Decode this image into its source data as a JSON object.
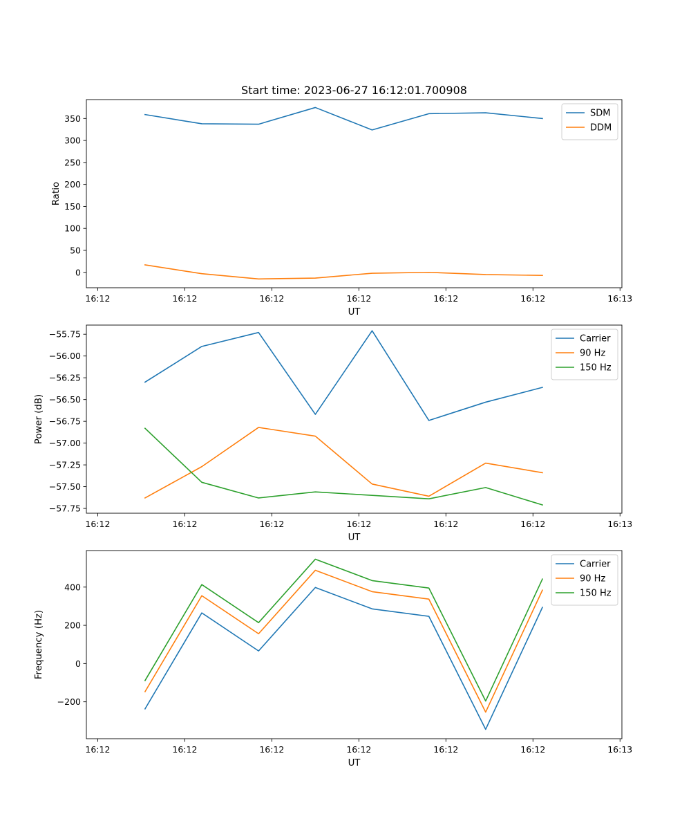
{
  "chart_data": [
    {
      "type": "line",
      "title": "Start time: 2023-06-27 16:12:01.700908",
      "xlabel": "UT",
      "ylabel": "Ratio",
      "x": [
        0.9,
        1.2,
        1.5,
        1.8,
        2.1,
        2.4,
        2.7,
        3.0
      ],
      "xlim": [
        0.59,
        3.42
      ],
      "x_ticks": [
        0.65,
        1.11,
        1.57,
        2.03,
        2.49,
        2.95,
        3.41
      ],
      "x_tick_labels": [
        "16:12",
        "16:12",
        "16:12",
        "16:12",
        "16:12",
        "16:12",
        "16:13"
      ],
      "ylim": [
        -35,
        393
      ],
      "y_ticks": [
        0,
        50,
        100,
        150,
        200,
        250,
        300,
        350
      ],
      "y_tick_labels": [
        "0",
        "50",
        "100",
        "150",
        "200",
        "250",
        "300",
        "350"
      ],
      "legend": "top-right",
      "grid": false,
      "series": [
        {
          "name": "SDM",
          "color": "#1f77b4",
          "values": [
            359,
            338,
            337,
            375,
            324,
            361,
            363,
            350
          ]
        },
        {
          "name": "DDM",
          "color": "#ff7f0e",
          "values": [
            17,
            -3,
            -15,
            -13,
            -2,
            0,
            -5,
            -7
          ]
        }
      ]
    },
    {
      "type": "line",
      "title": "",
      "xlabel": "UT",
      "ylabel": "Power (dB)",
      "x": [
        0.9,
        1.2,
        1.5,
        1.8,
        2.1,
        2.4,
        2.7,
        3.0
      ],
      "xlim": [
        0.59,
        3.42
      ],
      "x_ticks": [
        0.65,
        1.11,
        1.57,
        2.03,
        2.49,
        2.95,
        3.41
      ],
      "x_tick_labels": [
        "16:12",
        "16:12",
        "16:12",
        "16:12",
        "16:12",
        "16:12",
        "16:13"
      ],
      "ylim": [
        -57.805,
        -55.645
      ],
      "y_ticks": [
        -57.75,
        -57.5,
        -57.25,
        -57.0,
        -56.75,
        -56.5,
        -56.25,
        -56.0,
        -55.75
      ],
      "y_tick_labels": [
        "−57.75",
        "−57.50",
        "−57.25",
        "−57.00",
        "−56.75",
        "−56.50",
        "−56.25",
        "−56.00",
        "−55.75"
      ],
      "legend": "top-right",
      "grid": false,
      "series": [
        {
          "name": "Carrier",
          "color": "#1f77b4",
          "values": [
            -56.3,
            -55.89,
            -55.73,
            -56.67,
            -55.71,
            -56.74,
            -56.53,
            -56.36
          ]
        },
        {
          "name": "90 Hz",
          "color": "#ff7f0e",
          "values": [
            -57.63,
            -57.27,
            -56.82,
            -56.92,
            -57.47,
            -57.61,
            -57.23,
            -57.34
          ]
        },
        {
          "name": "150 Hz",
          "color": "#2ca02c",
          "values": [
            -56.83,
            -57.45,
            -57.63,
            -57.56,
            -57.6,
            -57.64,
            -57.51,
            -57.71
          ]
        }
      ]
    },
    {
      "type": "line",
      "title": "",
      "xlabel": "UT",
      "ylabel": "Frequency (Hz)",
      "x": [
        0.9,
        1.2,
        1.5,
        1.8,
        2.1,
        2.4,
        2.7,
        3.0
      ],
      "xlim": [
        0.59,
        3.42
      ],
      "x_ticks": [
        0.65,
        1.11,
        1.57,
        2.03,
        2.49,
        2.95,
        3.41
      ],
      "x_tick_labels": [
        "16:12",
        "16:12",
        "16:12",
        "16:12",
        "16:12",
        "16:12",
        "16:13"
      ],
      "ylim": [
        -393,
        591
      ],
      "y_ticks": [
        -200,
        0,
        200,
        400
      ],
      "y_tick_labels": [
        "−200",
        "0",
        "200",
        "400"
      ],
      "legend": "top-right",
      "grid": false,
      "series": [
        {
          "name": "Carrier",
          "color": "#1f77b4",
          "values": [
            -237,
            265,
            66,
            398,
            286,
            247,
            -344,
            294
          ]
        },
        {
          "name": "90 Hz",
          "color": "#ff7f0e",
          "values": [
            -147,
            355,
            156,
            488,
            376,
            337,
            -254,
            384
          ]
        },
        {
          "name": "150 Hz",
          "color": "#2ca02c",
          "values": [
            -89,
            413,
            214,
            546,
            434,
            395,
            -196,
            442
          ]
        }
      ]
    }
  ]
}
